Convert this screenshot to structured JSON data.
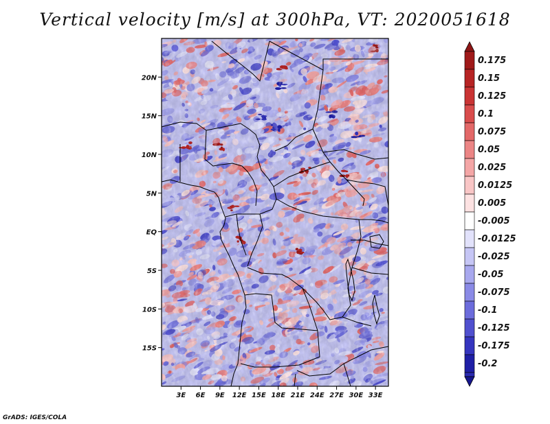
{
  "title": "Vertical velocity [m/s] at 300hPa, VT: 2020051618",
  "credit": "GrADS: IGES/COLA",
  "chart_data": {
    "type": "heatmap",
    "title": "Vertical velocity [m/s] at 300hPa, VT: 2020051618",
    "variable": "Vertical velocity",
    "units": "m/s",
    "level": "300hPa",
    "valid_time": "2020051618",
    "lon_range": [
      0,
      35
    ],
    "lat_range": [
      -20,
      25
    ],
    "lon_ticks": [
      {
        "value": 3,
        "label": "3E"
      },
      {
        "value": 6,
        "label": "6E"
      },
      {
        "value": 9,
        "label": "9E"
      },
      {
        "value": 12,
        "label": "12E"
      },
      {
        "value": 15,
        "label": "15E"
      },
      {
        "value": 18,
        "label": "18E"
      },
      {
        "value": 21,
        "label": "21E"
      },
      {
        "value": 24,
        "label": "24E"
      },
      {
        "value": 27,
        "label": "27E"
      },
      {
        "value": 30,
        "label": "30E"
      },
      {
        "value": 33,
        "label": "33E"
      }
    ],
    "lat_ticks": [
      {
        "value": 20,
        "label": "20N"
      },
      {
        "value": 15,
        "label": "15N"
      },
      {
        "value": 10,
        "label": "10N"
      },
      {
        "value": 5,
        "label": "5N"
      },
      {
        "value": 0,
        "label": "EQ"
      },
      {
        "value": -5,
        "label": "5S"
      },
      {
        "value": -10,
        "label": "10S"
      },
      {
        "value": -15,
        "label": "15S"
      }
    ],
    "colorbar": {
      "levels": [
        {
          "label": "0.175",
          "color": "#a01a1a"
        },
        {
          "label": "0.15",
          "color": "#b72424"
        },
        {
          "label": "0.125",
          "color": "#ca3434"
        },
        {
          "label": "0.1",
          "color": "#d94c4c"
        },
        {
          "label": "0.075",
          "color": "#e36868"
        },
        {
          "label": "0.05",
          "color": "#ec8585"
        },
        {
          "label": "0.025",
          "color": "#f4a6a6"
        },
        {
          "label": "0.0125",
          "color": "#f9c6c6"
        },
        {
          "label": "0.005",
          "color": "#fde2e2"
        },
        {
          "label": "-0.005",
          "color": "#ffffff"
        },
        {
          "label": "-0.0125",
          "color": "#e2e2fb"
        },
        {
          "label": "-0.025",
          "color": "#c6c6f5"
        },
        {
          "label": "-0.05",
          "color": "#a8a8ee"
        },
        {
          "label": "-0.075",
          "color": "#8a8ae6"
        },
        {
          "label": "-0.1",
          "color": "#6c6cdc"
        },
        {
          "label": "-0.125",
          "color": "#5050cf"
        },
        {
          "label": "-0.175",
          "color": "#3535bf"
        },
        {
          "label": "-0.2",
          "color": "#1f1fa6"
        }
      ],
      "top_extend_color": "#8e1616",
      "bottom_extend_color": "#16168e",
      "bottom_color": "#2a2ab2"
    }
  }
}
